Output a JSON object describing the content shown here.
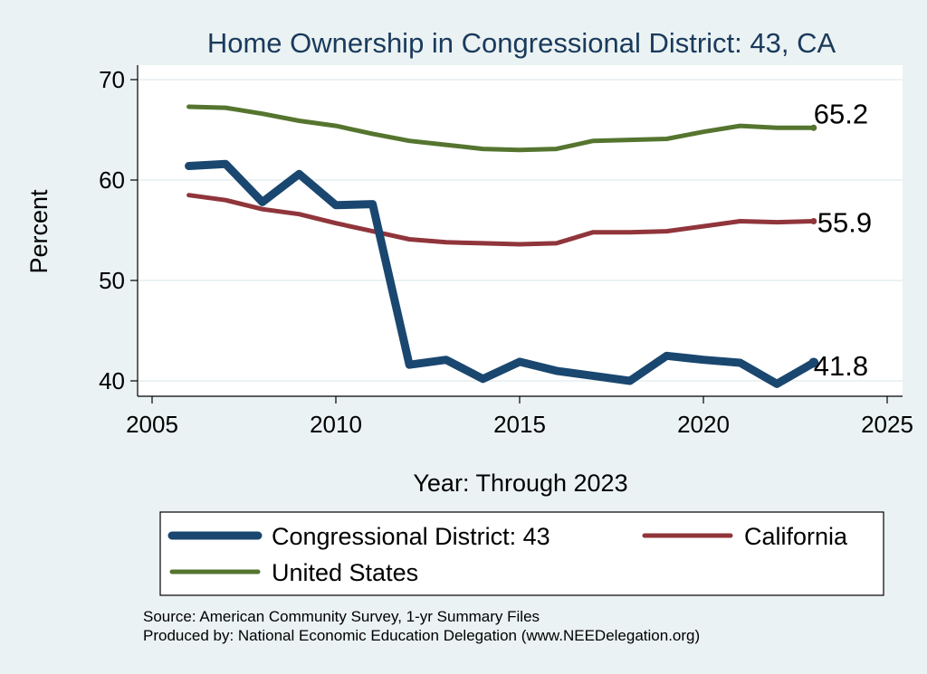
{
  "chart_data": {
    "type": "line",
    "title": "Home Ownership in Congressional District:  43, CA",
    "xlabel": "Year: Through 2023",
    "ylabel": "Percent",
    "xlim": [
      2005,
      2025
    ],
    "ylim": [
      38.5,
      71.5
    ],
    "xticks": [
      2005,
      2010,
      2015,
      2020,
      2025
    ],
    "yticks": [
      40,
      50,
      60,
      70
    ],
    "grid": true,
    "legend_position": "bottom",
    "x": [
      2006,
      2007,
      2008,
      2009,
      2010,
      2011,
      2012,
      2013,
      2014,
      2015,
      2016,
      2017,
      2018,
      2019,
      2020,
      2021,
      2022,
      2023
    ],
    "series": [
      {
        "name": "Congressional District:  43",
        "color": "#1a476f",
        "values": [
          61.4,
          61.6,
          57.8,
          60.6,
          57.5,
          57.6,
          41.6,
          42.1,
          40.2,
          41.9,
          41.0,
          40.5,
          40.0,
          42.5,
          42.1,
          41.8,
          39.7,
          41.8
        ],
        "end_label": "41.8"
      },
      {
        "name": "California",
        "color": "#90353b",
        "values": [
          58.5,
          58.0,
          57.1,
          56.6,
          55.7,
          54.9,
          54.1,
          53.8,
          53.7,
          53.6,
          53.7,
          54.8,
          54.8,
          54.9,
          55.4,
          55.9,
          55.8,
          55.9
        ],
        "end_label": "55.9"
      },
      {
        "name": "United States",
        "color": "#55752f",
        "values": [
          67.3,
          67.2,
          66.6,
          65.9,
          65.4,
          64.6,
          63.9,
          63.5,
          63.1,
          63.0,
          63.1,
          63.9,
          64.0,
          64.1,
          64.8,
          65.4,
          65.2,
          65.2
        ],
        "end_label": "65.2"
      }
    ],
    "source_note": "Source: American Community Survey, 1-yr Summary Files",
    "producer_note": "Produced by: National Economic Education Delegation (www.NEEDelegation.org)"
  }
}
